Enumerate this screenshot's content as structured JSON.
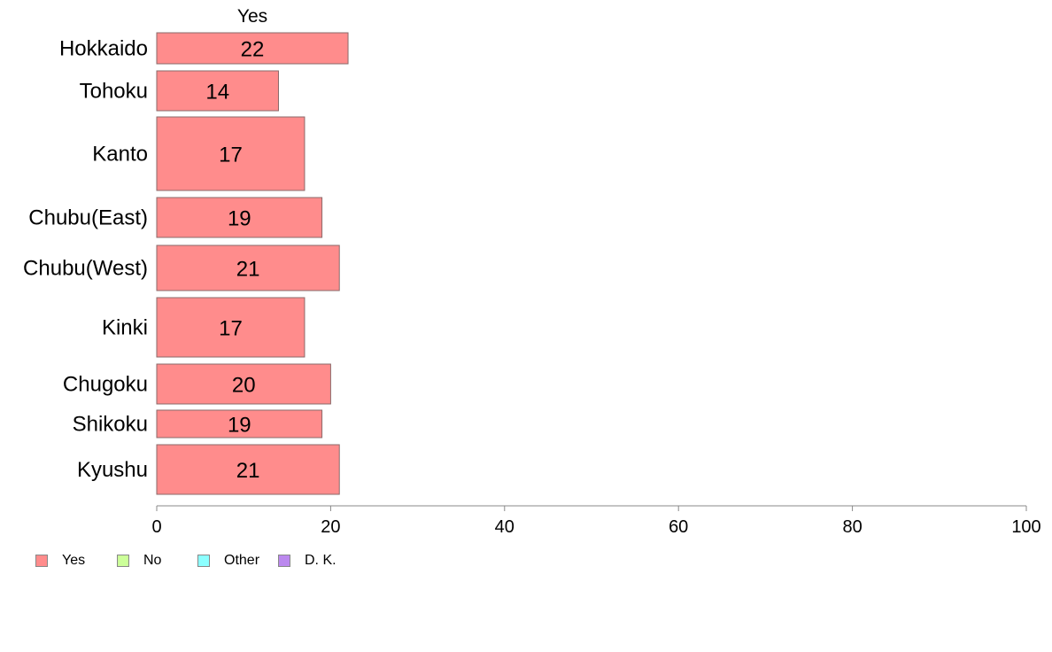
{
  "chart_data": {
    "type": "bar",
    "orientation": "horizontal",
    "column_title": "Yes",
    "categories": [
      "Hokkaido",
      "Tohoku",
      "Kanto",
      "Chubu(East)",
      "Chubu(West)",
      "Kinki",
      "Chugoku",
      "Shikoku",
      "Kyushu"
    ],
    "series": [
      {
        "name": "Yes",
        "color": "#ff8c8c",
        "values": [
          22,
          14,
          17,
          19,
          21,
          17,
          20,
          19,
          21
        ]
      }
    ],
    "value_labels": [
      "22",
      "14",
      "17",
      "19",
      "21",
      "17",
      "20",
      "19",
      "21"
    ],
    "xlim": [
      0,
      100
    ],
    "x_ticks": [
      0,
      20,
      40,
      60,
      80,
      100
    ],
    "x_tick_labels": [
      "0",
      "20",
      "40",
      "60",
      "80",
      "100"
    ],
    "grid": false,
    "legend_position": "bottom-left",
    "legend": [
      {
        "label": "Yes",
        "color": "#ff8c8c"
      },
      {
        "label": "No",
        "color": "#ccff99"
      },
      {
        "label": "Other",
        "color": "#8cffff"
      },
      {
        "label": "D. K.",
        "color": "#bb88ee"
      }
    ]
  }
}
